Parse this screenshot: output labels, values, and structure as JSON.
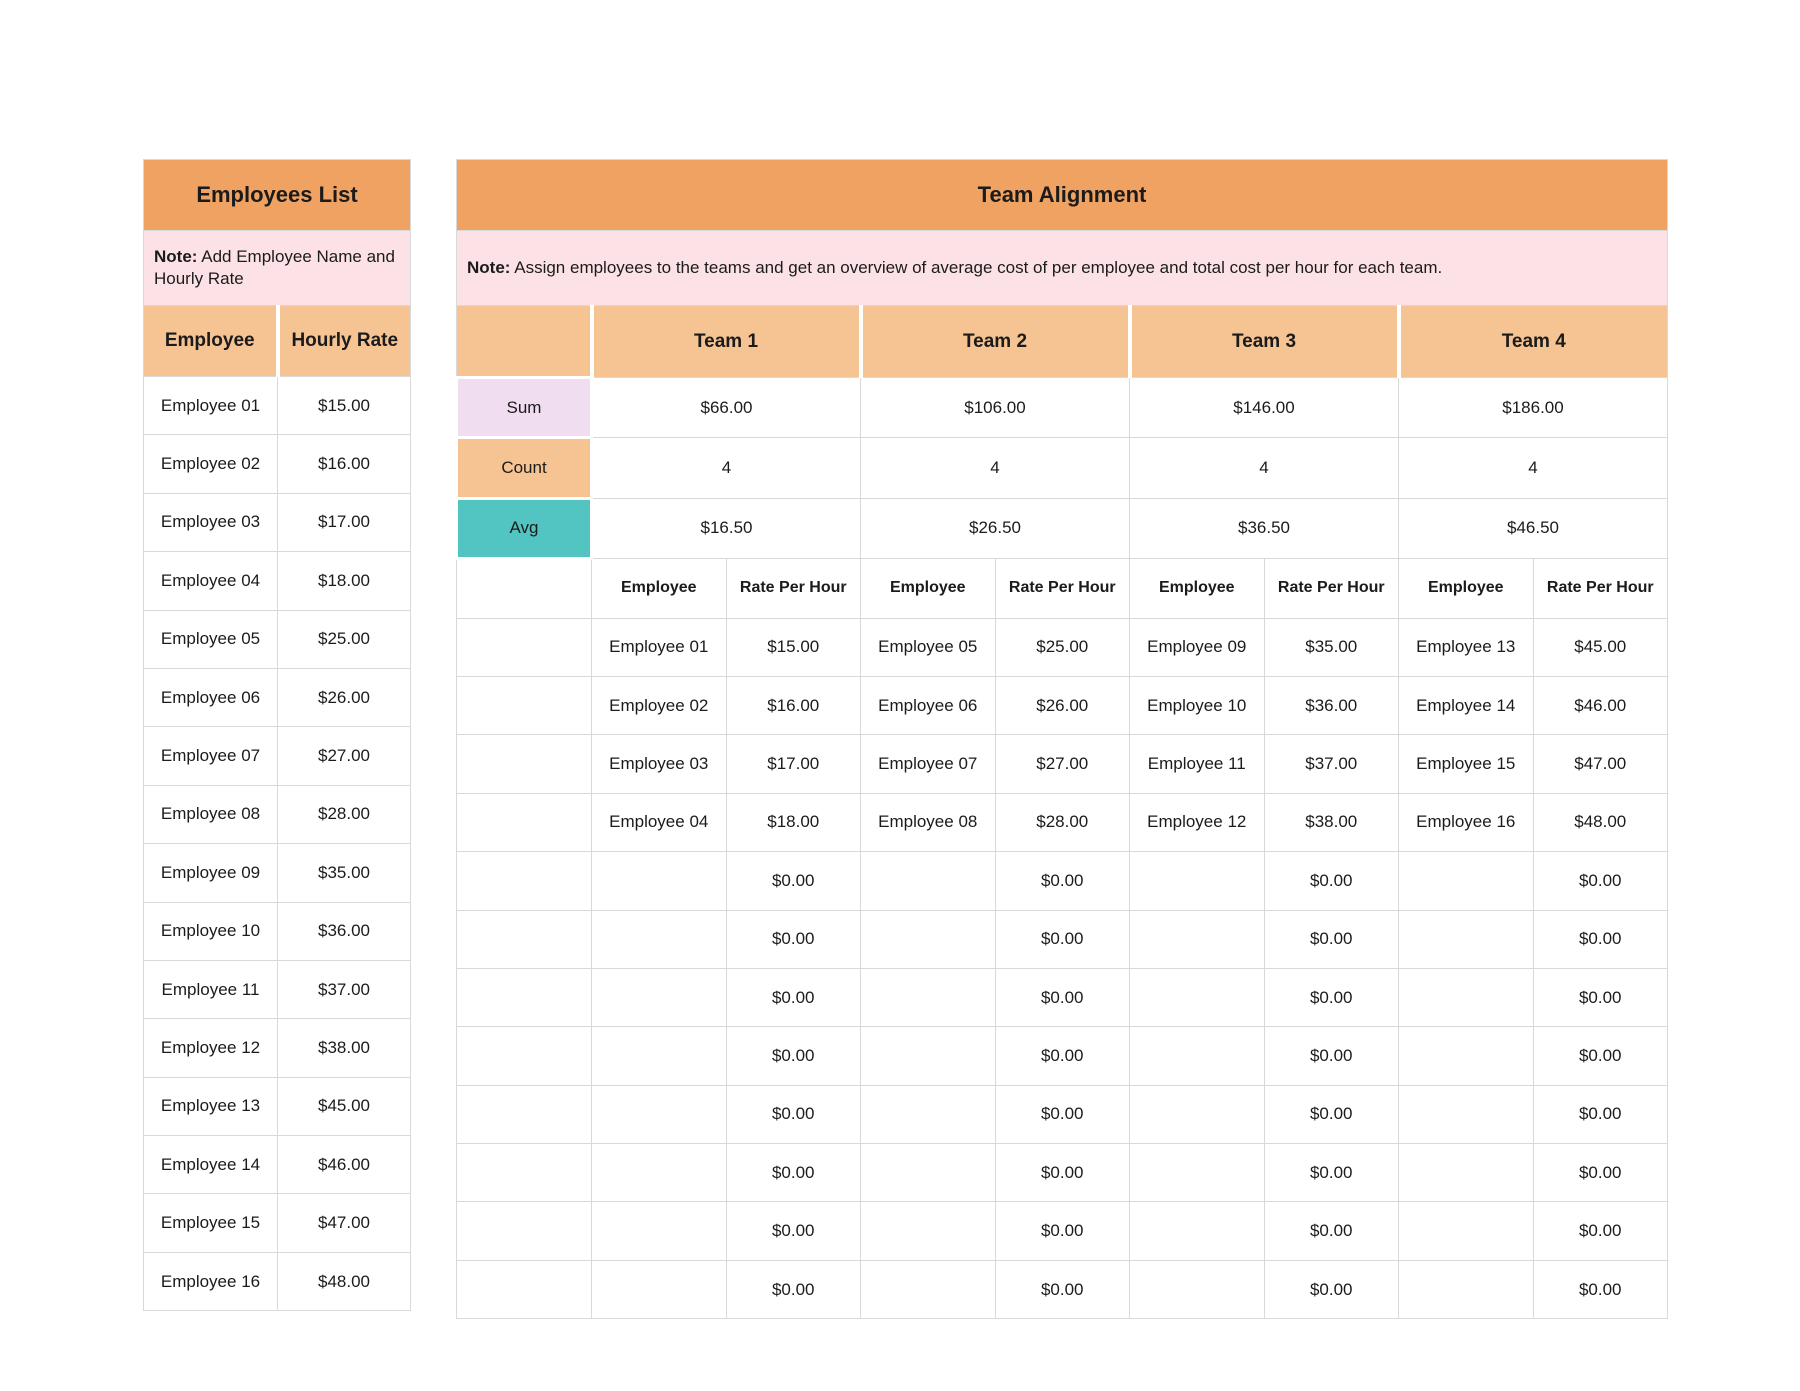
{
  "left_table": {
    "title": "Employees List",
    "note_label": "Note:",
    "note_text": " Add Employee Name and Hourly Rate",
    "columns": [
      "Employee",
      "Hourly Rate"
    ],
    "rows": [
      {
        "name": "Employee 01",
        "rate": "$15.00"
      },
      {
        "name": "Employee 02",
        "rate": "$16.00"
      },
      {
        "name": "Employee 03",
        "rate": "$17.00"
      },
      {
        "name": "Employee 04",
        "rate": "$18.00"
      },
      {
        "name": "Employee 05",
        "rate": "$25.00"
      },
      {
        "name": "Employee 06",
        "rate": "$26.00"
      },
      {
        "name": "Employee 07",
        "rate": "$27.00"
      },
      {
        "name": "Employee 08",
        "rate": "$28.00"
      },
      {
        "name": "Employee 09",
        "rate": "$35.00"
      },
      {
        "name": "Employee 10",
        "rate": "$36.00"
      },
      {
        "name": "Employee 11",
        "rate": "$37.00"
      },
      {
        "name": "Employee 12",
        "rate": "$38.00"
      },
      {
        "name": "Employee 13",
        "rate": "$45.00"
      },
      {
        "name": "Employee 14",
        "rate": "$46.00"
      },
      {
        "name": "Employee 15",
        "rate": "$47.00"
      },
      {
        "name": "Employee 16",
        "rate": "$48.00"
      }
    ]
  },
  "right_table": {
    "title": "Team Alignment",
    "note_label": "Note:",
    "note_text": " Assign employees to the teams and get an overview of average cost of per employee and total cost per hour for each team.",
    "teams": [
      "Team 1",
      "Team 2",
      "Team 3",
      "Team 4"
    ],
    "summary_rows": [
      {
        "label": "Sum",
        "values": [
          "$66.00",
          "$106.00",
          "$146.00",
          "$186.00"
        ]
      },
      {
        "label": "Count",
        "values": [
          "4",
          "4",
          "4",
          "4"
        ]
      },
      {
        "label": "Avg",
        "values": [
          "$16.50",
          "$26.50",
          "$36.50",
          "$46.50"
        ]
      }
    ],
    "sub_headers": [
      "Employee",
      "Rate Per Hour"
    ],
    "body_rows": [
      {
        "cells": [
          "Employee 01",
          "$15.00",
          "Employee 05",
          "$25.00",
          "Employee 09",
          "$35.00",
          "Employee 13",
          "$45.00"
        ]
      },
      {
        "cells": [
          "Employee 02",
          "$16.00",
          "Employee 06",
          "$26.00",
          "Employee 10",
          "$36.00",
          "Employee 14",
          "$46.00"
        ]
      },
      {
        "cells": [
          "Employee 03",
          "$17.00",
          "Employee 07",
          "$27.00",
          "Employee 11",
          "$37.00",
          "Employee 15",
          "$47.00"
        ]
      },
      {
        "cells": [
          "Employee 04",
          "$18.00",
          "Employee 08",
          "$28.00",
          "Employee 12",
          "$38.00",
          "Employee 16",
          "$48.00"
        ]
      },
      {
        "cells": [
          "",
          "$0.00",
          "",
          "$0.00",
          "",
          "$0.00",
          "",
          "$0.00"
        ]
      },
      {
        "cells": [
          "",
          "$0.00",
          "",
          "$0.00",
          "",
          "$0.00",
          "",
          "$0.00"
        ]
      },
      {
        "cells": [
          "",
          "$0.00",
          "",
          "$0.00",
          "",
          "$0.00",
          "",
          "$0.00"
        ]
      },
      {
        "cells": [
          "",
          "$0.00",
          "",
          "$0.00",
          "",
          "$0.00",
          "",
          "$0.00"
        ]
      },
      {
        "cells": [
          "",
          "$0.00",
          "",
          "$0.00",
          "",
          "$0.00",
          "",
          "$0.00"
        ]
      },
      {
        "cells": [
          "",
          "$0.00",
          "",
          "$0.00",
          "",
          "$0.00",
          "",
          "$0.00"
        ]
      },
      {
        "cells": [
          "",
          "$0.00",
          "",
          "$0.00",
          "",
          "$0.00",
          "",
          "$0.00"
        ]
      },
      {
        "cells": [
          "",
          "$0.00",
          "",
          "$0.00",
          "",
          "$0.00",
          "",
          "$0.00"
        ]
      }
    ]
  },
  "colors": {
    "title_orange": "#F0A262",
    "header_orange": "#F6C392",
    "count_orange": "#F6C392",
    "note_pink": "#FCE2E6",
    "lavender": "#F0DDEF",
    "teal": "#52C4C1",
    "grid": "#D9D9D9"
  }
}
